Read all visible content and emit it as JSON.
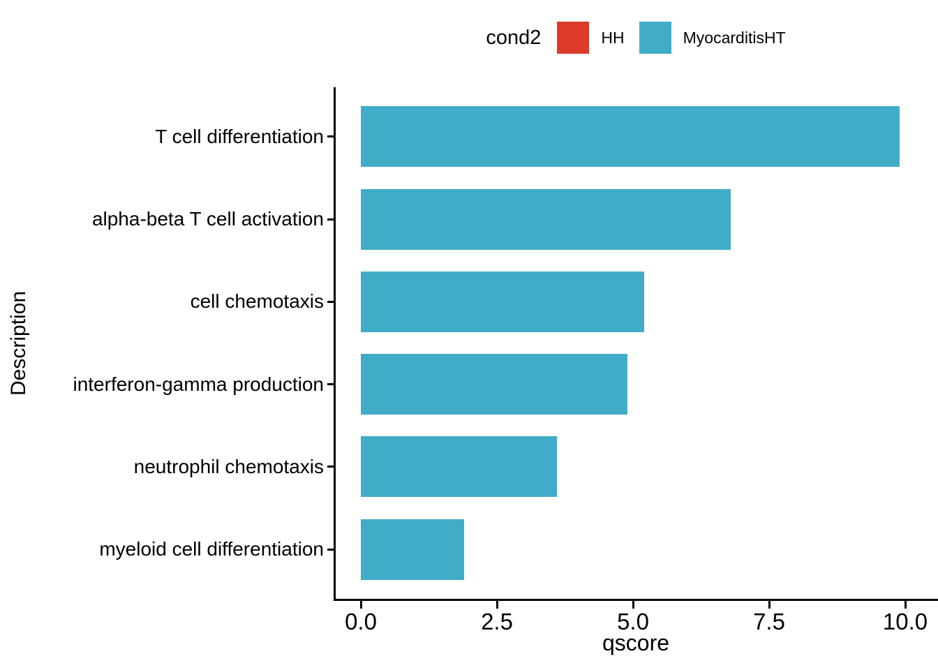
{
  "legend": {
    "title": "cond2",
    "items": [
      {
        "label": "HH",
        "color": "#DC3B2B"
      },
      {
        "label": "MyocarditisHT",
        "color": "#41ACC8"
      }
    ]
  },
  "chart_data": {
    "type": "bar",
    "orientation": "horizontal",
    "title": "",
    "xlabel": "qscore",
    "ylabel": "Description",
    "categories": [
      "T cell differentiation",
      "alpha-beta T cell activation",
      "cell chemotaxis",
      "interferon-gamma production",
      "neutrophil chemotaxis",
      "myeloid cell differentiation"
    ],
    "series": [
      {
        "name": "MyocarditisHT",
        "color": "#41ACC8",
        "values": [
          9.9,
          6.8,
          5.2,
          4.9,
          3.6,
          1.9
        ]
      }
    ],
    "legend_title": "cond2",
    "legend_entries": [
      "HH",
      "MyocarditisHT"
    ],
    "legend_position": "top",
    "x_ticks": {
      "values": [
        0,
        2.5,
        5.0,
        7.5,
        10.0
      ],
      "labels": [
        "0.0",
        "2.5",
        "5.0",
        "7.5",
        "10.0"
      ]
    },
    "xlim": [
      0,
      10.6
    ],
    "grid": false
  }
}
